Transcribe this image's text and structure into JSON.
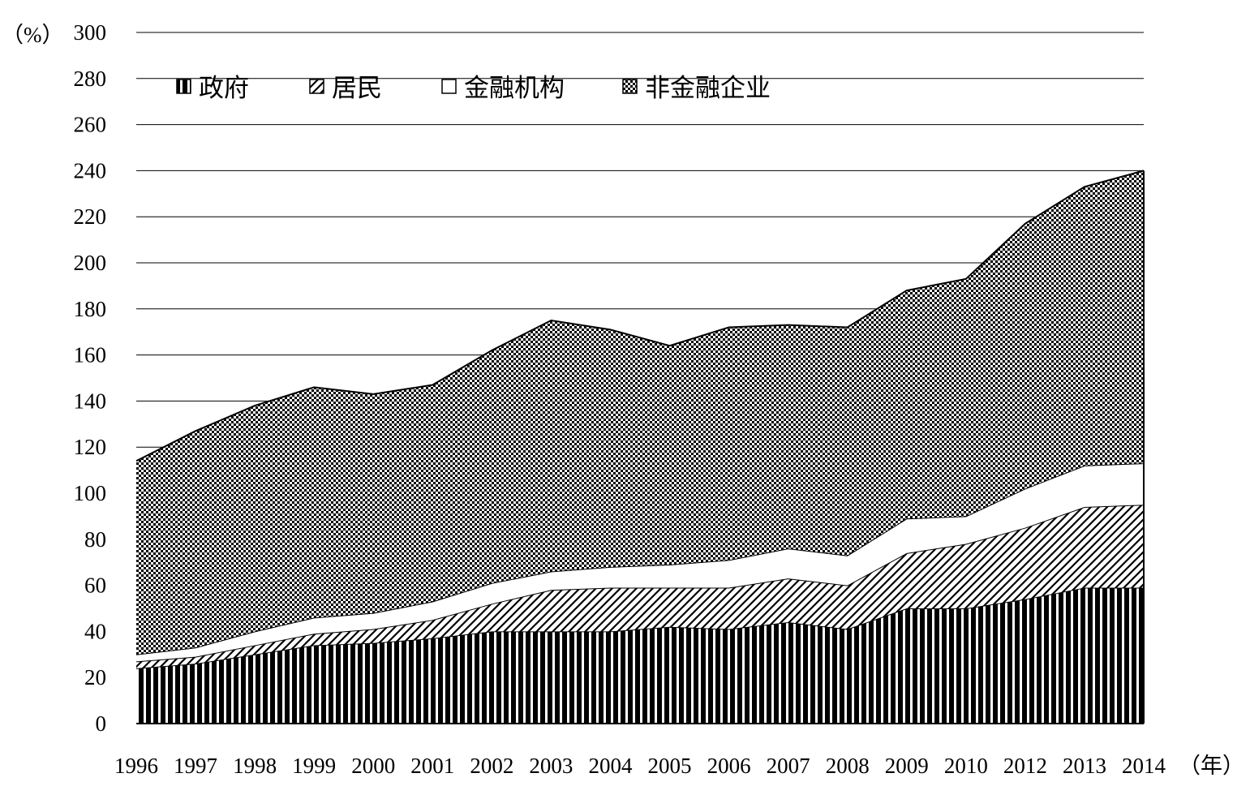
{
  "chart_data": {
    "type": "area",
    "stacked": true,
    "ylabel": "（%）",
    "xlabel": "（年）",
    "ylim": [
      0,
      300
    ],
    "yticks": [
      0,
      20,
      40,
      60,
      80,
      100,
      120,
      140,
      160,
      180,
      200,
      220,
      240,
      260,
      280,
      300
    ],
    "categories": [
      "1996",
      "1997",
      "1998",
      "1999",
      "2000",
      "2001",
      "2002",
      "2003",
      "2004",
      "2005",
      "2006",
      "2007",
      "2008",
      "2009",
      "2010",
      "2012",
      "2013",
      "2014"
    ],
    "legend_position": "top",
    "series": [
      {
        "name": "政府",
        "pattern": "vertical-stripes",
        "values": [
          24,
          26,
          30,
          34,
          35,
          37,
          40,
          40,
          40,
          42,
          41,
          44,
          41,
          50,
          50,
          54,
          59,
          59
        ]
      },
      {
        "name": "居民",
        "pattern": "diagonal-hatch",
        "values": [
          3,
          3,
          4,
          5,
          6,
          8,
          12,
          18,
          19,
          17,
          18,
          19,
          19,
          24,
          28,
          31,
          35,
          36
        ]
      },
      {
        "name": "金融机构",
        "pattern": "blank",
        "values": [
          3,
          4,
          6,
          7,
          7,
          8,
          9,
          8,
          9,
          10,
          12,
          13,
          13,
          15,
          12,
          17,
          18,
          18
        ]
      },
      {
        "name": "非金融企业",
        "pattern": "checker",
        "values": [
          84,
          94,
          98,
          100,
          95,
          94,
          101,
          109,
          103,
          95,
          101,
          97,
          99,
          99,
          103,
          115,
          121,
          127
        ]
      }
    ]
  }
}
